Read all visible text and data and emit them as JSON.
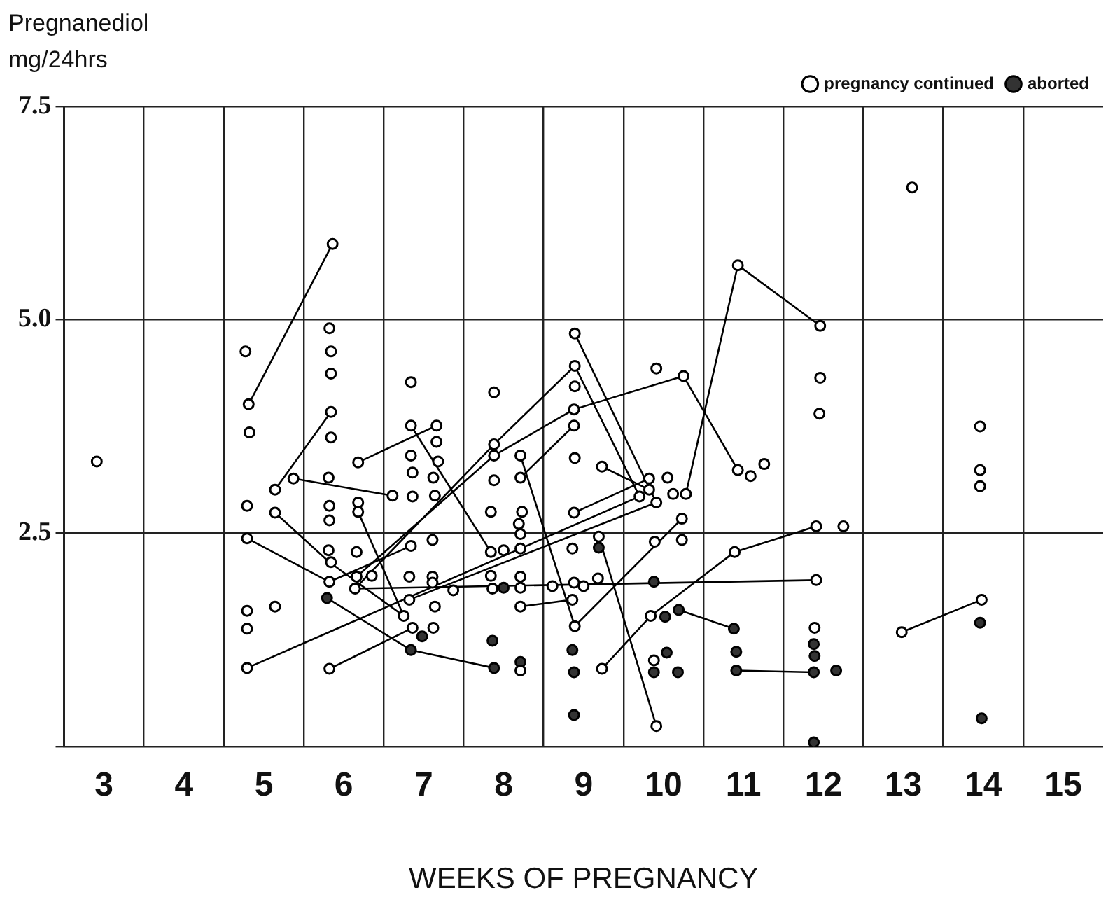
{
  "chart_data": {
    "type": "scatter",
    "ylabel": "Pregnanediol mg/24hrs",
    "xlabel": "WEEKS OF PREGNANCY",
    "xlim": [
      2.5,
      15.5
    ],
    "xticks": [
      {
        "value": 2.5,
        "label": null
      },
      3,
      {
        "value": 3.5,
        "label": null
      },
      4,
      {
        "value": 4.5,
        "label": null
      },
      5,
      {
        "value": 5.5,
        "label": null
      },
      6,
      {
        "value": 6.5,
        "label": null
      },
      7,
      {
        "value": 7.5,
        "label": null
      },
      8,
      {
        "value": 8.5,
        "label": null
      },
      9,
      {
        "value": 9.5,
        "label": null
      },
      10,
      {
        "value": 10.5,
        "label": null
      },
      11,
      {
        "value": 11.5,
        "label": null
      },
      12,
      {
        "value": 12.5,
        "label": null
      },
      13,
      {
        "value": 13.5,
        "label": null
      },
      14,
      {
        "value": 14.5,
        "label": null
      },
      15
    ],
    "ylim": [
      0,
      7.5
    ],
    "yticks": [
      {
        "value": 0,
        "label": null
      },
      2.5,
      {
        "value": 5,
        "label": "5.0"
      },
      7.5
    ],
    "grid": true,
    "legend": "top right",
    "marker": "circle",
    "series": [
      {
        "name": "pregnancy continued",
        "color": "#ffffff",
        "x": [
          2.91,
          4.77,
          4.81,
          4.82,
          4.79,
          4.79,
          5.14,
          5.14,
          4.79,
          4.79,
          4.79,
          5.14,
          5.86,
          5.82,
          5.84,
          5.84,
          5.84,
          5.84,
          5.37,
          5.81,
          5.82,
          5.82,
          5.81,
          5.84,
          5.82,
          5.82,
          6.84,
          6.84,
          7.16,
          7.16,
          6.84,
          7.18,
          6.86,
          7.12,
          6.86,
          7.14,
          6.61,
          6.18,
          6.18,
          6.18,
          6.16,
          6.35,
          6.16,
          6.14,
          6.84,
          7.11,
          6.82,
          7.11,
          7.11,
          6.82,
          7.14,
          6.75,
          6.86,
          7.12,
          7.88,
          7.88,
          7.88,
          7.88,
          7.84,
          8.21,
          8.21,
          8.23,
          8.19,
          8.21,
          8.21,
          7.84,
          8.0,
          7.84,
          8.21,
          8.21,
          7.86,
          8.21,
          7.37,
          8.21,
          8.89,
          8.89,
          8.89,
          8.88,
          8.88,
          8.89,
          9.23,
          8.88,
          8.86,
          9.19,
          9.18,
          8.88,
          9.0,
          8.61,
          8.86,
          8.89,
          9.23,
          9.91,
          10.25,
          9.82,
          10.05,
          9.82,
          9.7,
          10.12,
          10.28,
          9.91,
          10.23,
          9.89,
          10.23,
          9.84,
          9.88,
          9.91,
          10.93,
          10.93,
          11.09,
          11.26,
          10.89,
          11.96,
          11.96,
          11.95,
          11.91,
          12.25,
          11.91,
          11.89,
          13.11,
          12.98,
          13.96,
          13.96,
          13.96,
          13.98
        ],
        "values": [
          3.34,
          4.63,
          4.01,
          3.68,
          2.82,
          2.44,
          3.01,
          2.74,
          1.59,
          1.38,
          0.92,
          1.64,
          5.89,
          4.9,
          4.63,
          4.37,
          3.92,
          3.62,
          3.14,
          3.15,
          2.82,
          2.65,
          2.3,
          2.16,
          1.93,
          0.91,
          4.27,
          3.76,
          3.76,
          3.57,
          3.41,
          3.34,
          3.21,
          3.15,
          2.93,
          2.94,
          2.94,
          3.33,
          2.86,
          2.75,
          2.28,
          2.0,
          1.99,
          1.85,
          2.35,
          2.42,
          1.99,
          1.99,
          1.92,
          1.72,
          1.64,
          1.53,
          1.39,
          1.39,
          4.15,
          3.54,
          3.41,
          3.12,
          2.75,
          3.41,
          3.15,
          2.75,
          2.61,
          2.49,
          2.32,
          2.28,
          2.3,
          2.0,
          1.99,
          1.86,
          1.85,
          1.64,
          1.83,
          0.89,
          4.84,
          4.46,
          4.22,
          3.95,
          3.76,
          3.38,
          3.28,
          2.74,
          2.32,
          2.46,
          1.97,
          1.92,
          1.88,
          1.88,
          1.72,
          1.41,
          0.91,
          4.43,
          4.34,
          3.14,
          3.15,
          3.01,
          2.93,
          2.96,
          2.96,
          2.86,
          2.67,
          2.4,
          2.42,
          1.53,
          1.01,
          0.24,
          5.64,
          3.24,
          3.17,
          3.31,
          2.28,
          4.93,
          4.32,
          3.9,
          2.58,
          2.58,
          1.95,
          1.39,
          6.55,
          1.34,
          3.75,
          3.24,
          3.05,
          1.72
        ]
      },
      {
        "name": "aborted",
        "color": "#333333",
        "x": [
          5.79,
          6.98,
          6.84,
          8.0,
          7.86,
          7.88,
          8.21,
          9.19,
          8.86,
          8.88,
          8.88,
          9.88,
          10.02,
          10.19,
          10.04,
          9.88,
          10.18,
          10.88,
          10.91,
          10.91,
          11.88,
          11.89,
          11.88,
          12.16,
          11.88,
          13.96,
          13.98
        ],
        "values": [
          1.74,
          1.29,
          1.13,
          1.86,
          1.24,
          0.92,
          0.99,
          2.33,
          1.13,
          0.87,
          0.37,
          1.93,
          1.52,
          1.6,
          1.1,
          0.87,
          0.87,
          1.38,
          1.11,
          0.89,
          1.2,
          1.06,
          0.87,
          0.89,
          0.05,
          1.45,
          0.33
        ]
      },
      {
        "type": "line",
        "color": "#000000",
        "marker": "none",
        "x": [
          4.81,
          5.86
        ],
        "values": [
          4.01,
          5.89
        ]
      },
      {
        "type": "line",
        "color": "#000000",
        "marker": "none",
        "x": [
          5.14,
          5.84
        ],
        "values": [
          3.01,
          3.92
        ]
      },
      {
        "type": "line",
        "color": "#000000",
        "marker": "none",
        "x": [
          5.37,
          6.61
        ],
        "values": [
          3.14,
          2.94
        ]
      },
      {
        "type": "line",
        "color": "#000000",
        "marker": "none",
        "x": [
          5.14,
          5.82,
          6.75
        ],
        "values": [
          2.74,
          2.16,
          1.53
        ]
      },
      {
        "type": "line",
        "color": "#000000",
        "marker": "none",
        "x": [
          4.79,
          5.82,
          6.84
        ],
        "values": [
          2.44,
          1.93,
          2.35
        ]
      },
      {
        "type": "line",
        "color": "#000000",
        "marker": "none",
        "x": [
          4.79,
          9.7
        ],
        "values": [
          0.92,
          2.93
        ]
      },
      {
        "type": "line",
        "color": "#000000",
        "marker": "none",
        "x": [
          5.82,
          6.86
        ],
        "values": [
          0.91,
          1.39
        ]
      },
      {
        "type": "line",
        "color": "#000000",
        "marker": "none",
        "x": [
          5.79,
          6.84,
          7.88
        ],
        "values": [
          1.74,
          1.13,
          0.92
        ]
      },
      {
        "type": "line",
        "color": "#000000",
        "marker": "none",
        "x": [
          6.18,
          7.16
        ],
        "values": [
          3.33,
          3.76
        ]
      },
      {
        "type": "line",
        "color": "#000000",
        "marker": "none",
        "x": [
          6.18,
          6.75
        ],
        "values": [
          2.75,
          1.53
        ]
      },
      {
        "type": "line",
        "color": "#000000",
        "marker": "none",
        "x": [
          6.84,
          7.84
        ],
        "values": [
          3.76,
          2.28
        ]
      },
      {
        "type": "line",
        "color": "#000000",
        "marker": "none",
        "x": [
          6.14,
          11.91
        ],
        "values": [
          1.85,
          1.95
        ]
      },
      {
        "type": "line",
        "color": "#000000",
        "marker": "none",
        "x": [
          6.16,
          7.88,
          8.88,
          10.25,
          10.93
        ],
        "values": [
          1.99,
          3.41,
          3.95,
          4.34,
          3.24
        ]
      },
      {
        "type": "line",
        "color": "#000000",
        "marker": "none",
        "x": [
          6.14,
          7.88,
          8.89,
          9.7
        ],
        "values": [
          1.85,
          3.54,
          4.46,
          2.93
        ]
      },
      {
        "type": "line",
        "color": "#000000",
        "marker": "none",
        "x": [
          8.89,
          9.91
        ],
        "values": [
          4.84,
          2.86
        ]
      },
      {
        "type": "line",
        "color": "#000000",
        "marker": "none",
        "x": [
          8.21,
          8.89,
          10.23
        ],
        "values": [
          3.41,
          1.41,
          2.67
        ]
      },
      {
        "type": "line",
        "color": "#000000",
        "marker": "none",
        "x": [
          8.21,
          8.88
        ],
        "values": [
          3.15,
          3.76
        ]
      },
      {
        "type": "line",
        "color": "#000000",
        "marker": "none",
        "x": [
          9.23,
          9.82
        ],
        "values": [
          3.28,
          3.01
        ]
      },
      {
        "type": "line",
        "color": "#000000",
        "marker": "none",
        "x": [
          8.88,
          9.82
        ],
        "values": [
          2.74,
          3.14
        ]
      },
      {
        "type": "line",
        "color": "#000000",
        "marker": "none",
        "x": [
          8.21,
          8.86
        ],
        "values": [
          1.64,
          1.72
        ]
      },
      {
        "type": "line",
        "color": "#000000",
        "marker": "none",
        "x": [
          9.19,
          9.91
        ],
        "values": [
          2.46,
          0.24
        ]
      },
      {
        "type": "line",
        "color": "#000000",
        "marker": "none",
        "x": [
          9.23,
          9.84,
          10.89,
          11.91
        ],
        "values": [
          0.91,
          1.53,
          2.28,
          2.58
        ]
      },
      {
        "type": "line",
        "color": "#000000",
        "marker": "none",
        "x": [
          10.28,
          10.93,
          11.96
        ],
        "values": [
          2.96,
          5.64,
          4.93
        ]
      },
      {
        "type": "line",
        "color": "#000000",
        "marker": "none",
        "x": [
          10.19,
          10.88
        ],
        "values": [
          1.6,
          1.38
        ]
      },
      {
        "type": "line",
        "color": "#000000",
        "marker": "none",
        "x": [
          10.91,
          11.88
        ],
        "values": [
          0.89,
          0.87
        ]
      },
      {
        "type": "line",
        "color": "#000000",
        "marker": "none",
        "x": [
          12.98,
          13.98
        ],
        "values": [
          1.34,
          1.72
        ]
      },
      {
        "type": "line",
        "color": "#000000",
        "marker": "none",
        "x": [
          6.82,
          9.91
        ],
        "values": [
          1.72,
          2.86
        ]
      }
    ]
  }
}
